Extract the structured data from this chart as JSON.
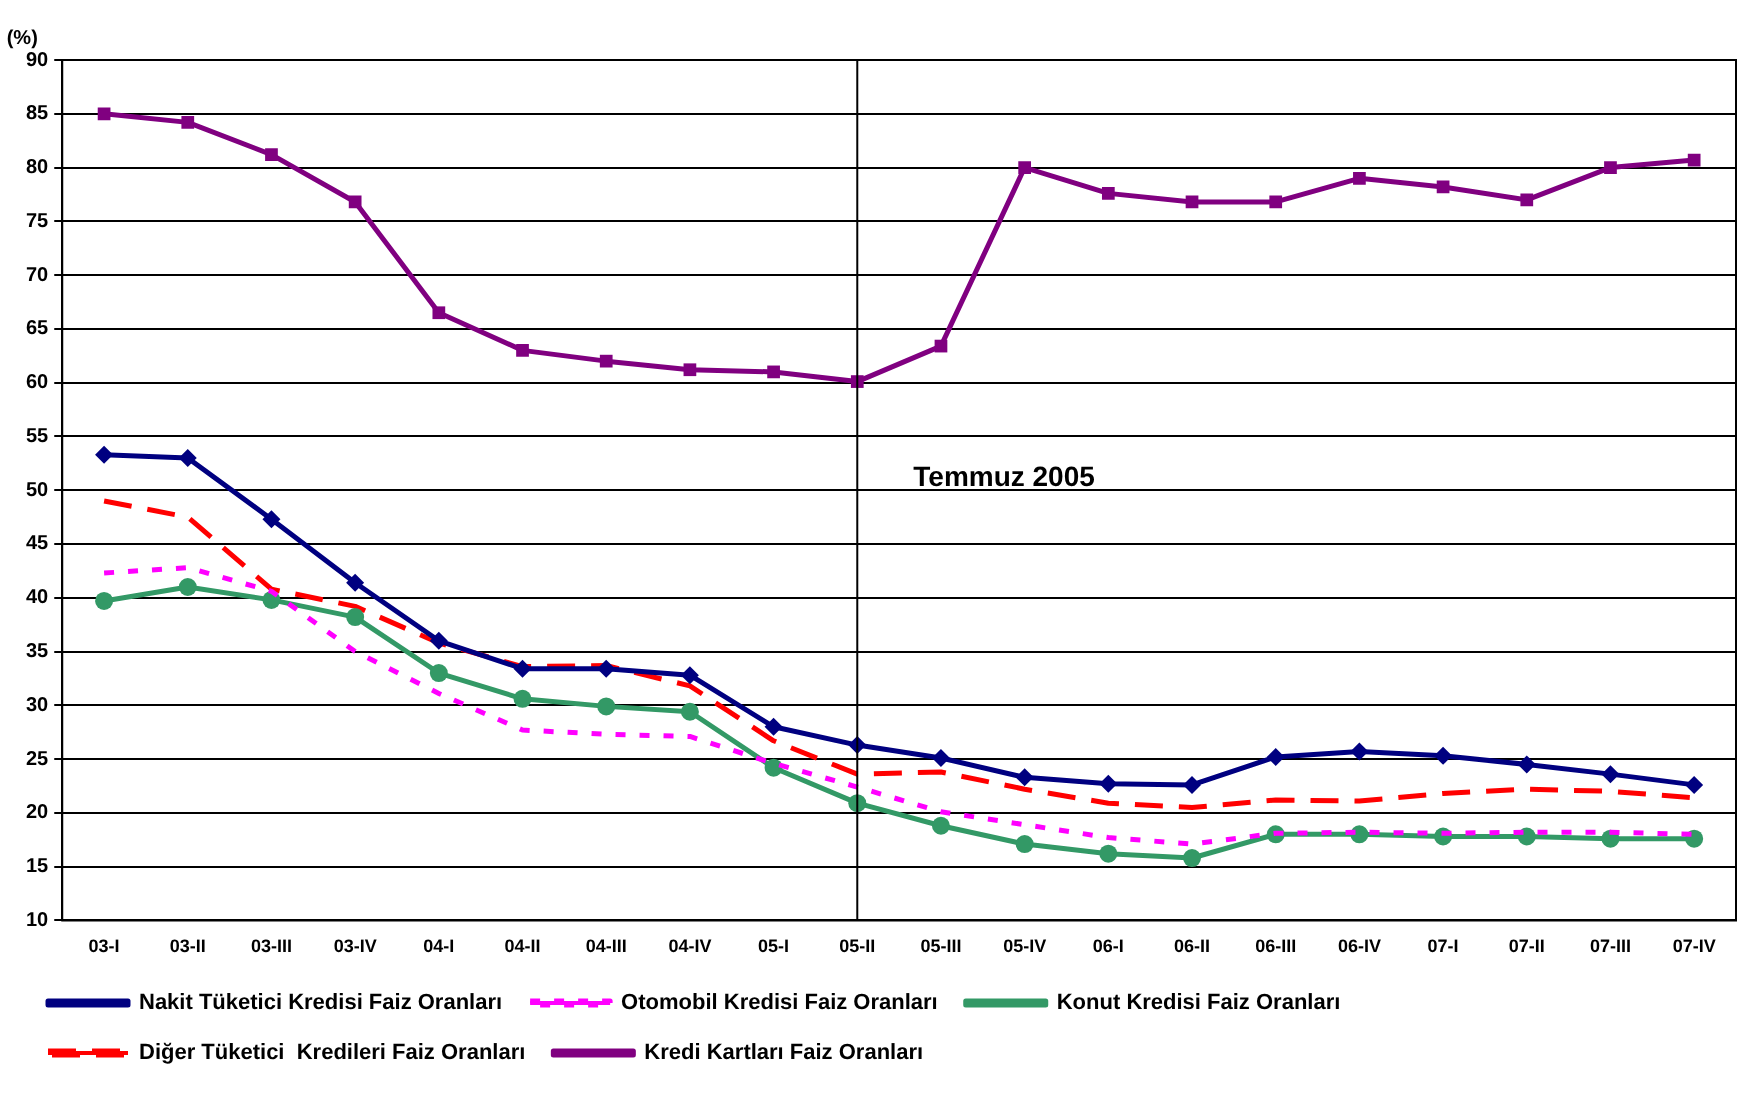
{
  "chart_data": {
    "type": "line",
    "ylabel": "(%)",
    "categories": [
      "03-I",
      "03-II",
      "03-III",
      "03-IV",
      "04-I",
      "04-II",
      "04-III",
      "04-IV",
      "05-I",
      "05-II",
      "05-III",
      "05-IV",
      "06-I",
      "06-II",
      "06-III",
      "06-IV",
      "07-I",
      "07-II",
      "07-III",
      "07-IV"
    ],
    "series": [
      {
        "name": "Nakit Tüketici Kredisi Faiz Oranları",
        "color": "#000080",
        "marker": "diamond",
        "line_style": "solid",
        "values": [
          53.3,
          53,
          47.3,
          41.4,
          36,
          33.4,
          33.4,
          32.8,
          28,
          26.3,
          25.1,
          23.3,
          22.7,
          22.6,
          25.2,
          25.7,
          25.3,
          24.5,
          23.6,
          22.6
        ]
      },
      {
        "name": "Otomobil Kredisi Faiz Oranları",
        "color": "#ff00ff",
        "marker": "none",
        "line_style": "dotted",
        "values": [
          42.3,
          42.8,
          40.6,
          35,
          31.1,
          27.7,
          27.3,
          27.1,
          24.6,
          22.4,
          20.1,
          18.9,
          17.7,
          17.1,
          18.1,
          18.2,
          18.1,
          18.2,
          18.2,
          18
        ]
      },
      {
        "name": "Konut Kredisi Faiz Oranları",
        "color": "#339966",
        "marker": "circle",
        "line_style": "solid",
        "values": [
          39.7,
          41,
          39.8,
          38.2,
          33,
          30.6,
          29.9,
          29.4,
          24.2,
          20.9,
          18.8,
          17.1,
          16.2,
          15.8,
          18,
          18,
          17.8,
          17.8,
          17.6,
          17.6
        ]
      },
      {
        "name": "Diğer Tüketici  Kredileri Faiz Oranları",
        "color": "#ff0000",
        "marker": "none",
        "line_style": "dashed",
        "values": [
          49,
          47.5,
          40.8,
          39.2,
          35.8,
          33.6,
          33.7,
          31.8,
          26.7,
          23.6,
          23.8,
          22.2,
          20.9,
          20.5,
          21.2,
          21.1,
          21.8,
          22.2,
          22,
          21.4
        ]
      },
      {
        "name": "Kredi Kartları Faiz Oranları",
        "color": "#800080",
        "marker": "square",
        "line_style": "solid",
        "values": [
          85,
          84.2,
          81.2,
          76.8,
          66.5,
          63,
          62,
          61.2,
          61,
          60.1,
          63.4,
          80,
          77.6,
          76.8,
          76.8,
          79,
          78.2,
          77,
          80,
          80.7
        ]
      }
    ],
    "ylim": [
      10,
      90
    ],
    "yticks": [
      10,
      15,
      20,
      25,
      30,
      35,
      40,
      45,
      50,
      55,
      60,
      65,
      70,
      75,
      80,
      85,
      90
    ],
    "grid": "y",
    "legend": "bottom",
    "ref_lines": [
      {
        "axis": "x",
        "value": "05-II",
        "label": "Temmuz 2005",
        "color": "#000000"
      }
    ]
  }
}
